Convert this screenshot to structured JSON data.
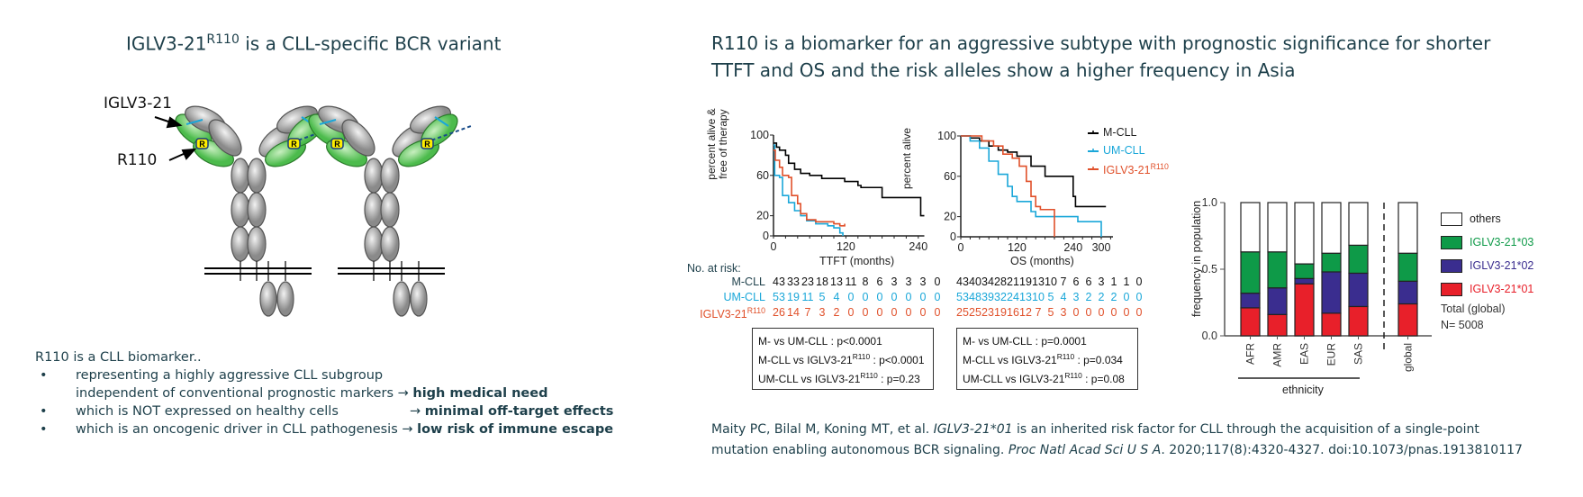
{
  "left": {
    "title": "IGLV3-21",
    "title_sup": "R110",
    "title_rest": " is a CLL-specific BCR variant",
    "diagram": {
      "label_iglv": "IGLV3-21",
      "label_r110": "R110",
      "marker_letter": "R"
    },
    "intro": "R110 is a CLL biomarker..",
    "bullets": [
      {
        "text": "representing a highly aggressive CLL subgroup",
        "text2": "independent of conventional prognostic markers",
        "arrow": "→",
        "emph": "high medical need"
      },
      {
        "text": "which is NOT expressed on healthy cells",
        "arrow": "→",
        "emph": "minimal off-target effects"
      },
      {
        "text": "which is an oncogenic driver in CLL pathogenesis",
        "arrow": "→",
        "emph": "low risk of immune escape"
      }
    ]
  },
  "right": {
    "title_line1": "R110 is a biomarker for an aggressive subtype with prognostic significance for shorter",
    "title_line2": "TTFT and OS and the risk alleles show a higher frequency in Asia",
    "citation_line1_a": "Maity PC, Bilal M, Koning MT, et al. ",
    "citation_line1_i": "IGLV3-21*01",
    "citation_line1_b": " is an inherited risk factor for CLL through the acquisition of a single-point",
    "citation_line2_a": "mutation enabling autonomous BCR signaling. ",
    "citation_line2_i": "Proc Natl Acad Sci U S A",
    "citation_line2_b": ". 2020;117(8):4320-4327. doi:10.1073/pnas.1913810117"
  },
  "colors": {
    "text": "#1d3f4a",
    "mcll": "#000000",
    "umcll": "#1aa7d9",
    "iglv": "#e0502a",
    "others": "#ffffff",
    "allele03": "#0e9a48",
    "allele02": "#3a2d8f",
    "allele01": "#e8202a"
  },
  "at_risk": {
    "header": "No. at risk:",
    "rows": [
      {
        "label": "M-CLL",
        "sup": "",
        "ttft": [
          "43",
          "33",
          "23",
          "18",
          "13",
          "11",
          "8",
          "6",
          "3",
          "3",
          "3",
          "0"
        ],
        "os": [
          "43",
          "40",
          "34",
          "28",
          "21",
          "19",
          "13",
          "10",
          "7",
          "6",
          "6",
          "3",
          "1",
          "1",
          "0"
        ]
      },
      {
        "label": "UM-CLL",
        "sup": "",
        "ttft": [
          "53",
          "19",
          "11",
          "5",
          "4",
          "0",
          "0",
          "0",
          "0",
          "0",
          "0",
          "0"
        ],
        "os": [
          "53",
          "48",
          "39",
          "32",
          "24",
          "13",
          "10",
          "5",
          "4",
          "3",
          "2",
          "2",
          "2",
          "0",
          "0"
        ]
      },
      {
        "label": "IGLV3-21",
        "sup": "R110",
        "ttft": [
          "26",
          "14",
          "7",
          "3",
          "2",
          "0",
          "0",
          "0",
          "0",
          "0",
          "0",
          "0"
        ],
        "os": [
          "25",
          "25",
          "23",
          "19",
          "16",
          "12",
          "7",
          "5",
          "3",
          "0",
          "0",
          "0",
          "0",
          "0",
          "0"
        ]
      }
    ]
  },
  "pvalues": {
    "ttft": [
      {
        "a": "M- vs UM-CLL",
        "sup": "",
        "p": "p<0.0001"
      },
      {
        "a": "M-CLL vs IGLV3-21",
        "sup": "R110",
        "p": "p<0.0001"
      },
      {
        "a": "UM-CLL vs IGLV3-21",
        "sup": "R110",
        "p": "p=0.23"
      }
    ],
    "os": [
      {
        "a": "M- vs UM-CLL",
        "sup": "",
        "p": "p=0.0001"
      },
      {
        "a": "M-CLL vs IGLV3-21",
        "sup": "R110",
        "p": "p=0.034"
      },
      {
        "a": "UM-CLL vs IGLV3-21",
        "sup": "R110",
        "p": "p=0.08"
      }
    ]
  },
  "chart_data": [
    {
      "type": "line",
      "subtype": "kaplan-meier",
      "xlabel": "TTFT (months)",
      "ylabel_line1": "percent alive &",
      "ylabel_line2": "free of therapy",
      "xticks": [
        "0",
        "120",
        "240"
      ],
      "yticks": [
        "0",
        "20",
        "60",
        "100"
      ],
      "xlim": [
        0,
        250
      ],
      "ylim": [
        0,
        100
      ],
      "series": [
        {
          "key": "mcll",
          "points": [
            [
              0,
              92
            ],
            [
              5,
              88
            ],
            [
              10,
              85
            ],
            [
              20,
              80
            ],
            [
              25,
              72
            ],
            [
              35,
              66
            ],
            [
              45,
              62
            ],
            [
              60,
              60
            ],
            [
              80,
              57
            ],
            [
              110,
              57
            ],
            [
              118,
              54
            ],
            [
              140,
              50
            ],
            [
              145,
              48
            ],
            [
              180,
              38
            ],
            [
              240,
              38
            ],
            [
              244,
              20
            ],
            [
              250,
              20
            ]
          ]
        },
        {
          "key": "umcll",
          "points": [
            [
              0,
              90
            ],
            [
              2,
              60
            ],
            [
              10,
              58
            ],
            [
              15,
              40
            ],
            [
              25,
              33
            ],
            [
              35,
              25
            ],
            [
              45,
              20
            ],
            [
              55,
              15
            ],
            [
              70,
              12
            ],
            [
              90,
              10
            ],
            [
              100,
              8
            ],
            [
              110,
              3
            ],
            [
              115,
              0
            ]
          ]
        },
        {
          "key": "iglv",
          "points": [
            [
              0,
              85
            ],
            [
              3,
              75
            ],
            [
              10,
              68
            ],
            [
              15,
              60
            ],
            [
              25,
              58
            ],
            [
              30,
              40
            ],
            [
              40,
              32
            ],
            [
              45,
              22
            ],
            [
              55,
              16
            ],
            [
              70,
              14
            ],
            [
              100,
              12
            ],
            [
              110,
              10
            ],
            [
              118,
              12
            ]
          ]
        }
      ]
    },
    {
      "type": "line",
      "subtype": "kaplan-meier",
      "xlabel": "OS (months)",
      "ylabel_line1": "percent alive",
      "xticks": [
        "0",
        "120",
        "240",
        "300"
      ],
      "yticks": [
        "0",
        "20",
        "60",
        "100"
      ],
      "xlim": [
        0,
        330
      ],
      "ylim": [
        0,
        100
      ],
      "legend": [
        {
          "key": "mcll",
          "label": "M-CLL",
          "sup": ""
        },
        {
          "key": "umcll",
          "label": "UM-CLL",
          "sup": ""
        },
        {
          "key": "iglv",
          "label": "IGLV3-21",
          "sup": "R110"
        }
      ],
      "legend_position": "top-right",
      "series": [
        {
          "key": "mcll",
          "points": [
            [
              0,
              100
            ],
            [
              20,
              98
            ],
            [
              40,
              95
            ],
            [
              60,
              90
            ],
            [
              80,
              86
            ],
            [
              100,
              84
            ],
            [
              120,
              80
            ],
            [
              150,
              70
            ],
            [
              180,
              60
            ],
            [
              220,
              60
            ],
            [
              240,
              40
            ],
            [
              245,
              30
            ],
            [
              310,
              30
            ]
          ]
        },
        {
          "key": "umcll",
          "points": [
            [
              0,
              100
            ],
            [
              20,
              95
            ],
            [
              40,
              88
            ],
            [
              60,
              75
            ],
            [
              80,
              62
            ],
            [
              100,
              50
            ],
            [
              110,
              40
            ],
            [
              120,
              35
            ],
            [
              150,
              25
            ],
            [
              160,
              20
            ],
            [
              240,
              20
            ],
            [
              250,
              15
            ],
            [
              290,
              15
            ],
            [
              300,
              0
            ]
          ]
        },
        {
          "key": "iglv",
          "points": [
            [
              0,
              100
            ],
            [
              30,
              100
            ],
            [
              45,
              95
            ],
            [
              70,
              90
            ],
            [
              90,
              82
            ],
            [
              110,
              78
            ],
            [
              125,
              70
            ],
            [
              140,
              55
            ],
            [
              150,
              40
            ],
            [
              160,
              30
            ],
            [
              170,
              27
            ],
            [
              200,
              27
            ],
            [
              200,
              0
            ]
          ]
        }
      ]
    },
    {
      "type": "bar",
      "stacked": true,
      "ylabel": "frequency in population",
      "xlabel": "ethnicity",
      "categories": [
        "AFR",
        "AMR",
        "EAS",
        "EUR",
        "SAS",
        "global"
      ],
      "yticks": [
        "0.0",
        "0.5",
        "1.0"
      ],
      "ylim": [
        0,
        1
      ],
      "series": [
        {
          "name": "IGLV3-21*01",
          "key": "allele01",
          "values": [
            0.21,
            0.16,
            0.39,
            0.17,
            0.22,
            0.24
          ]
        },
        {
          "name": "IGLV3-21*02",
          "key": "allele02",
          "values": [
            0.11,
            0.2,
            0.04,
            0.31,
            0.25,
            0.17
          ]
        },
        {
          "name": "IGLV3-21*03",
          "key": "allele03",
          "values": [
            0.31,
            0.27,
            0.11,
            0.14,
            0.21,
            0.21
          ]
        },
        {
          "name": "others",
          "key": "others",
          "values": [
            0.37,
            0.37,
            0.46,
            0.38,
            0.32,
            0.38
          ]
        }
      ],
      "legend_order": [
        "others",
        "IGLV3-21*03",
        "IGLV3-21*02",
        "IGLV3-21*01"
      ],
      "legend_position": "right",
      "note_line1": "Total (global)",
      "note_line2": "N= 5008"
    }
  ]
}
